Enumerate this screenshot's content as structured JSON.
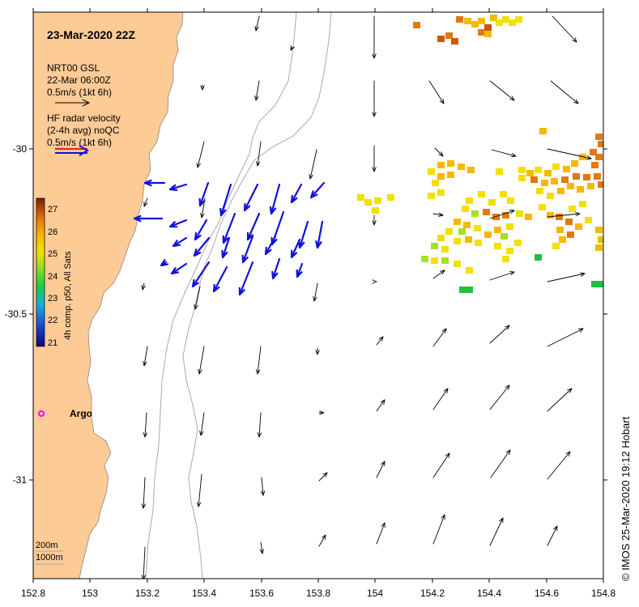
{
  "title": "23-Mar-2020 22Z",
  "legend": {
    "model_name": "NRT00 GSL",
    "model_time": "22-Mar 06:00Z",
    "model_scale": "0.5m/s (1kt 6h)",
    "radar_line1": "HF radar velocity",
    "radar_line2": "(2-4h avg) noQC",
    "radar_scale": "0.5m/s (1kt 6h)"
  },
  "colorbar": {
    "label": "4h comp. p50, All Sats",
    "ticks": [
      "27",
      "26",
      "25",
      "24",
      "23",
      "22",
      "21"
    ]
  },
  "argo_label": "Argo",
  "contours": {
    "label_200": "200m",
    "label_1000": "1000m"
  },
  "credit": "© IMOS 25-Mar-2020 19:12 Hobart",
  "axes": {
    "x_ticks": [
      "152.8",
      "153",
      "153.2",
      "153.4",
      "153.6",
      "153.8",
      "154",
      "154.2",
      "154.4",
      "154.6",
      "154.8"
    ],
    "y_ticks": [
      "-30",
      "-30.5",
      "-31"
    ]
  },
  "colors": {
    "land": "#fccb96",
    "radar_arrow": "#1010d8",
    "model_arrow": "#000000",
    "argo_marker": "#ff00ff",
    "contour": "#a9a9a9"
  }
}
